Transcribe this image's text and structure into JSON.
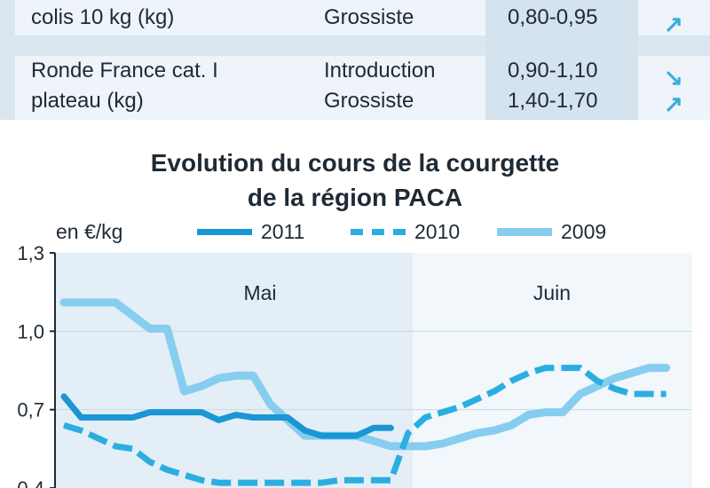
{
  "table": {
    "rows": [
      {
        "product": "colis 10 kg (kg)",
        "stages": [
          "Grossiste"
        ],
        "prices": [
          "0,80-0,95"
        ],
        "trends": [
          "up"
        ]
      },
      {
        "product_lines": [
          "Ronde France cat. I",
          "plateau (kg)"
        ],
        "stages": [
          "Introduction",
          "Grossiste"
        ],
        "prices": [
          "0,90-1,10",
          "1,40-1,70"
        ],
        "trends": [
          "down",
          "up"
        ]
      }
    ]
  },
  "chart_data": {
    "type": "line",
    "title_lines": [
      "Evolution du cours de la courgette",
      "de la région PACA"
    ],
    "unit": "en €/kg",
    "months": [
      "Mai",
      "Juin"
    ],
    "yticks": [
      "1,3",
      "1,0",
      "0,7",
      "0,4"
    ],
    "ylim": [
      0.4,
      1.3
    ],
    "xlim": [
      0,
      36
    ],
    "colors": {
      "2011": "#1a96d4",
      "2010": "#2aaee0",
      "2009": "#86cdef"
    },
    "series": [
      {
        "name": "2011",
        "style": "solid",
        "x": [
          0,
          1,
          2,
          3,
          4,
          5,
          6,
          7,
          8,
          9,
          10,
          11,
          12,
          13,
          14,
          15,
          16,
          17,
          18,
          19
        ],
        "values": [
          0.75,
          0.67,
          0.67,
          0.67,
          0.67,
          0.69,
          0.69,
          0.69,
          0.69,
          0.66,
          0.68,
          0.67,
          0.67,
          0.67,
          0.62,
          0.6,
          0.6,
          0.6,
          0.63,
          0.63
        ]
      },
      {
        "name": "2010",
        "style": "dashed",
        "x": [
          0,
          1,
          2,
          3,
          4,
          5,
          6,
          7,
          8,
          9,
          10,
          11,
          12,
          13,
          14,
          15,
          16,
          17,
          18,
          19,
          20,
          21,
          22,
          23,
          24,
          25,
          26,
          27,
          28,
          29,
          30,
          31,
          32,
          33,
          34,
          35
        ],
        "values": [
          0.64,
          0.62,
          0.59,
          0.56,
          0.55,
          0.5,
          0.47,
          0.45,
          0.43,
          0.42,
          0.42,
          0.42,
          0.42,
          0.42,
          0.42,
          0.42,
          0.43,
          0.43,
          0.43,
          0.43,
          0.61,
          0.67,
          0.69,
          0.71,
          0.74,
          0.77,
          0.81,
          0.84,
          0.86,
          0.86,
          0.86,
          0.81,
          0.78,
          0.76,
          0.76,
          0.76
        ]
      },
      {
        "name": "2009",
        "style": "solid",
        "x": [
          0,
          1,
          2,
          3,
          4,
          5,
          6,
          7,
          8,
          9,
          10,
          11,
          12,
          13,
          14,
          15,
          16,
          17,
          18,
          19,
          20,
          21,
          22,
          23,
          24,
          25,
          26,
          27,
          28,
          29,
          30,
          31,
          32,
          33,
          34,
          35
        ],
        "values": [
          1.11,
          1.11,
          1.11,
          1.11,
          1.06,
          1.01,
          1.01,
          0.77,
          0.79,
          0.82,
          0.83,
          0.83,
          0.72,
          0.66,
          0.6,
          0.6,
          0.6,
          0.6,
          0.58,
          0.56,
          0.56,
          0.56,
          0.57,
          0.59,
          0.61,
          0.62,
          0.64,
          0.68,
          0.69,
          0.69,
          0.76,
          0.79,
          0.82,
          0.84,
          0.86,
          0.86
        ]
      }
    ]
  }
}
